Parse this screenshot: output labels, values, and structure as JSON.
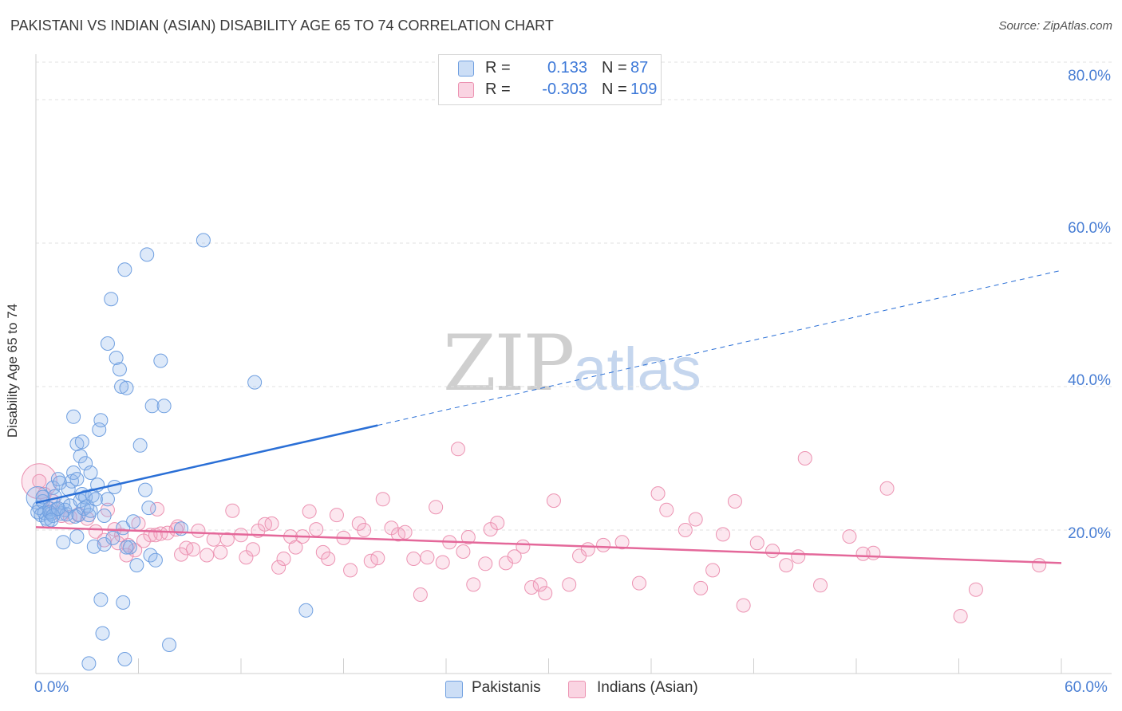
{
  "title": "PAKISTANI VS INDIAN (ASIAN) DISABILITY AGE 65 TO 74 CORRELATION CHART",
  "source": "Source: ZipAtlas.com",
  "watermark": {
    "zip": "ZIP",
    "atlas": "atlas"
  },
  "colors": {
    "blue_fill": "rgba(143,182,236,0.30)",
    "blue_stroke": "#6f9fe0",
    "blue_line": "#2a6fd6",
    "pink_fill": "rgba(244,160,190,0.25)",
    "pink_stroke": "#ec93b2",
    "pink_line": "#e4689a",
    "grid": "#e1e1e1",
    "tick_text": "#4a7fd4"
  },
  "legend": {
    "rows": [
      {
        "series": "Pakistanis",
        "r_label": "R =",
        "r_value": "0.133",
        "n_label": "N =",
        "n_value": "87"
      },
      {
        "series": "Indians (Asian)",
        "r_label": "R =",
        "r_value": "-0.303",
        "n_label": "N =",
        "n_value": "109"
      }
    ]
  },
  "chart_data": {
    "type": "scatter",
    "title": "PAKISTANI VS INDIAN (ASIAN) DISABILITY AGE 65 TO 74 CORRELATION CHART",
    "xlabel": "",
    "ylabel": "Disability Age 65 to 74",
    "xlim": [
      0,
      60
    ],
    "ylim": [
      0,
      85
    ],
    "x_tick_labels": [
      "0.0%",
      "60.0%"
    ],
    "y_tick_labels": [
      "20.0%",
      "40.0%",
      "60.0%",
      "80.0%"
    ],
    "y_grid_values": [
      20,
      40,
      60,
      80
    ],
    "x_tick_values": [
      0,
      6,
      12,
      18,
      24,
      30,
      36,
      42,
      48,
      54,
      60
    ],
    "series": [
      {
        "name": "Pakistanis",
        "r": 0.133,
        "n": 87,
        "trend": {
          "x_start": 0,
          "y_start": 23.8,
          "x_solid_end": 20,
          "y_solid_end": 34.6,
          "x_dash_end": 60,
          "y_dash_end": 56.2
        },
        "points": [
          [
            0.1,
            22.5
          ],
          [
            0.2,
            23.1
          ],
          [
            0.3,
            22.1
          ],
          [
            0.4,
            24.0
          ],
          [
            0.5,
            22.4
          ],
          [
            0.6,
            21.6
          ],
          [
            0.7,
            21.2
          ],
          [
            0.8,
            23.0
          ],
          [
            0.9,
            22.3
          ],
          [
            1.0,
            25.9
          ],
          [
            1.1,
            24.7
          ],
          [
            1.2,
            22.9
          ],
          [
            1.3,
            27.1
          ],
          [
            1.4,
            26.6
          ],
          [
            1.5,
            22.3
          ],
          [
            1.6,
            23.8
          ],
          [
            1.7,
            22.8
          ],
          [
            1.8,
            22.2
          ],
          [
            1.9,
            25.7
          ],
          [
            2.0,
            23.4
          ],
          [
            2.1,
            26.8
          ],
          [
            2.2,
            28.0
          ],
          [
            2.3,
            21.9
          ],
          [
            2.4,
            27.1
          ],
          [
            2.5,
            22.1
          ],
          [
            2.6,
            24.1
          ],
          [
            2.7,
            25.0
          ],
          [
            2.8,
            23.0
          ],
          [
            2.9,
            24.6
          ],
          [
            3.0,
            23.3
          ],
          [
            3.1,
            22.1
          ],
          [
            3.2,
            22.7
          ],
          [
            3.3,
            24.8
          ],
          [
            0.4,
            24.6
          ],
          [
            0.8,
            22.5
          ],
          [
            1.0,
            22.0
          ],
          [
            1.3,
            23.0
          ],
          [
            1.6,
            18.3
          ],
          [
            2.2,
            35.8
          ],
          [
            2.4,
            32.0
          ],
          [
            2.6,
            30.3
          ],
          [
            2.7,
            32.3
          ],
          [
            2.9,
            29.3
          ],
          [
            3.2,
            28.0
          ],
          [
            3.4,
            17.7
          ],
          [
            3.5,
            24.3
          ],
          [
            3.6,
            26.3
          ],
          [
            3.7,
            34.0
          ],
          [
            3.8,
            35.3
          ],
          [
            4.0,
            18.0
          ],
          [
            4.0,
            22.0
          ],
          [
            4.2,
            24.3
          ],
          [
            4.2,
            46.0
          ],
          [
            4.4,
            52.2
          ],
          [
            4.5,
            18.9
          ],
          [
            4.6,
            26.0
          ],
          [
            4.7,
            44.0
          ],
          [
            4.9,
            42.4
          ],
          [
            5.0,
            40.0
          ],
          [
            5.1,
            20.3
          ],
          [
            5.2,
            56.3
          ],
          [
            5.3,
            39.8
          ],
          [
            5.5,
            17.6
          ],
          [
            5.7,
            21.2
          ],
          [
            5.9,
            15.1
          ],
          [
            6.1,
            31.8
          ],
          [
            6.4,
            25.6
          ],
          [
            6.5,
            58.4
          ],
          [
            6.6,
            23.1
          ],
          [
            6.7,
            16.5
          ],
          [
            6.8,
            37.3
          ],
          [
            7.0,
            15.8
          ],
          [
            7.3,
            43.6
          ],
          [
            7.5,
            37.3
          ],
          [
            7.8,
            4.0
          ],
          [
            8.5,
            20.2
          ],
          [
            9.8,
            60.4
          ],
          [
            12.8,
            40.6
          ],
          [
            15.8,
            8.8
          ],
          [
            3.8,
            10.3
          ],
          [
            3.9,
            5.6
          ],
          [
            3.1,
            1.4
          ],
          [
            5.1,
            9.9
          ],
          [
            5.2,
            2.0
          ],
          [
            5.3,
            17.6
          ],
          [
            2.4,
            19.1
          ],
          [
            0.9,
            21.4
          ]
        ]
      },
      {
        "name": "Indians (Asian)",
        "r": -0.303,
        "n": 109,
        "trend": {
          "x_start": 0,
          "y_start": 20.4,
          "x_end": 60,
          "y_end": 15.4
        },
        "points": [
          [
            0.2,
            26.8
          ],
          [
            0.5,
            25.0
          ],
          [
            0.8,
            23.0
          ],
          [
            1.0,
            24.0
          ],
          [
            1.5,
            22.0
          ],
          [
            2.0,
            21.8
          ],
          [
            2.5,
            22.2
          ],
          [
            3.0,
            21.6
          ],
          [
            3.5,
            19.8
          ],
          [
            4.0,
            18.6
          ],
          [
            4.2,
            22.8
          ],
          [
            4.6,
            20.1
          ],
          [
            5.0,
            19.3
          ],
          [
            5.4,
            17.9
          ],
          [
            5.8,
            17.2
          ],
          [
            5.3,
            16.5
          ],
          [
            4.8,
            18.2
          ],
          [
            6.0,
            20.9
          ],
          [
            6.3,
            18.5
          ],
          [
            6.7,
            19.3
          ],
          [
            7.0,
            19.3
          ],
          [
            7.3,
            19.5
          ],
          [
            7.7,
            19.6
          ],
          [
            7.1,
            22.9
          ],
          [
            8.2,
            20.1
          ],
          [
            8.3,
            20.5
          ],
          [
            8.8,
            17.5
          ],
          [
            9.2,
            17.3
          ],
          [
            9.5,
            19.9
          ],
          [
            10.0,
            16.5
          ],
          [
            10.4,
            18.7
          ],
          [
            10.8,
            16.9
          ],
          [
            11.2,
            18.7
          ],
          [
            11.5,
            22.7
          ],
          [
            12.0,
            19.3
          ],
          [
            12.3,
            16.2
          ],
          [
            12.7,
            17.3
          ],
          [
            13.0,
            19.9
          ],
          [
            13.4,
            20.8
          ],
          [
            13.8,
            20.9
          ],
          [
            14.2,
            14.8
          ],
          [
            14.5,
            16.0
          ],
          [
            14.9,
            19.1
          ],
          [
            15.2,
            17.6
          ],
          [
            15.6,
            19.1
          ],
          [
            16.0,
            22.6
          ],
          [
            16.4,
            20.1
          ],
          [
            16.8,
            16.9
          ],
          [
            17.1,
            16.0
          ],
          [
            17.6,
            22.1
          ],
          [
            18.0,
            18.9
          ],
          [
            18.4,
            14.4
          ],
          [
            18.9,
            20.9
          ],
          [
            19.2,
            20.0
          ],
          [
            19.6,
            15.7
          ],
          [
            20.0,
            16.1
          ],
          [
            20.3,
            24.3
          ],
          [
            20.8,
            20.3
          ],
          [
            21.2,
            19.4
          ],
          [
            21.6,
            19.7
          ],
          [
            22.1,
            16.0
          ],
          [
            22.5,
            11.0
          ],
          [
            22.9,
            16.2
          ],
          [
            23.4,
            23.2
          ],
          [
            23.8,
            15.5
          ],
          [
            24.2,
            18.3
          ],
          [
            25.0,
            17.0
          ],
          [
            25.3,
            19.0
          ],
          [
            25.6,
            12.4
          ],
          [
            26.3,
            15.3
          ],
          [
            26.6,
            20.1
          ],
          [
            27.0,
            21.0
          ],
          [
            27.5,
            15.4
          ],
          [
            28.0,
            16.3
          ],
          [
            28.5,
            17.7
          ],
          [
            29.0,
            12.0
          ],
          [
            29.5,
            12.4
          ],
          [
            29.8,
            11.2
          ],
          [
            30.3,
            24.1
          ],
          [
            31.2,
            12.4
          ],
          [
            31.8,
            16.4
          ],
          [
            32.3,
            17.3
          ],
          [
            33.2,
            17.9
          ],
          [
            34.3,
            18.3
          ],
          [
            35.3,
            12.6
          ],
          [
            36.4,
            25.1
          ],
          [
            36.9,
            22.8
          ],
          [
            38.0,
            20.0
          ],
          [
            38.6,
            21.5
          ],
          [
            38.9,
            11.9
          ],
          [
            39.6,
            14.4
          ],
          [
            40.2,
            19.4
          ],
          [
            40.9,
            24.0
          ],
          [
            41.4,
            9.5
          ],
          [
            42.2,
            18.2
          ],
          [
            43.1,
            17.1
          ],
          [
            43.9,
            15.1
          ],
          [
            44.6,
            16.3
          ],
          [
            45.0,
            30.0
          ],
          [
            45.9,
            12.3
          ],
          [
            47.6,
            19.1
          ],
          [
            48.4,
            16.7
          ],
          [
            49.0,
            16.8
          ],
          [
            49.8,
            25.8
          ],
          [
            54.1,
            8.0
          ],
          [
            55.0,
            11.7
          ],
          [
            58.7,
            15.1
          ],
          [
            24.7,
            31.3
          ],
          [
            8.5,
            16.6
          ]
        ]
      }
    ]
  }
}
